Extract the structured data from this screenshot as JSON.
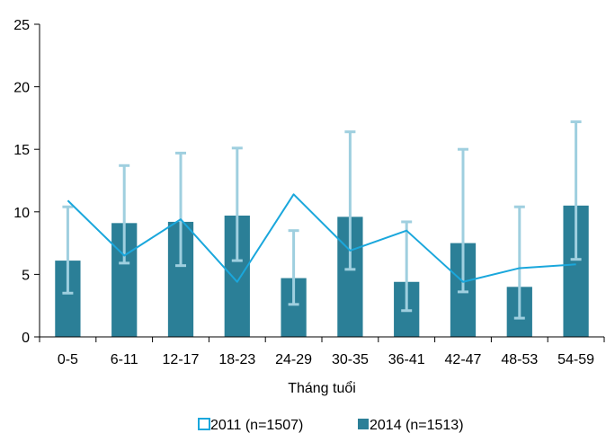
{
  "chart_data": {
    "type": "bar",
    "xlabel": "Tháng tuổi",
    "ylabel": "",
    "ylim": [
      0,
      25
    ],
    "yticks": [
      "0",
      "5",
      "10",
      "15",
      "20",
      "25"
    ],
    "categories": [
      "0-5",
      "6-11",
      "12-17",
      "18-23",
      "24-29",
      "30-35",
      "36-41",
      "42-47",
      "48-53",
      "54-59"
    ],
    "series": [
      {
        "name": "2011 (n=1507)",
        "kind": "line",
        "color": "#1aa7dc",
        "values": [
          10.9,
          6.5,
          9.4,
          4.4,
          11.4,
          6.9,
          8.5,
          4.4,
          5.5,
          5.8
        ]
      },
      {
        "name": "2014 (n=1513)",
        "kind": "bar",
        "color": "#2b7f97",
        "values": [
          6.1,
          9.1,
          9.2,
          9.7,
          4.7,
          9.6,
          4.4,
          7.5,
          4.0,
          10.5
        ],
        "error_low": [
          3.5,
          5.9,
          5.7,
          6.1,
          2.6,
          5.4,
          2.1,
          3.6,
          1.5,
          6.2
        ],
        "error_high": [
          10.4,
          13.7,
          14.7,
          15.1,
          8.5,
          16.4,
          9.2,
          15.0,
          10.4,
          17.2
        ]
      }
    ],
    "error_bar_color": "#9fcfdf",
    "grid": false,
    "legend_position": "bottom"
  }
}
